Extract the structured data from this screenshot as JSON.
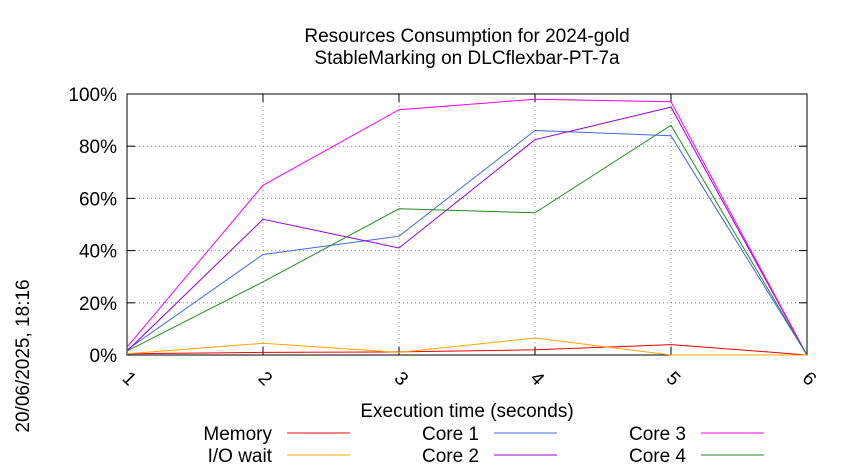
{
  "chart_data": {
    "type": "line",
    "title": "Resources Consumption for 2024-gold",
    "subtitle": "StableMarking on DLCflexbar-PT-7a",
    "xlabel": "Execution time (seconds)",
    "ylabel": "",
    "side_label": "20/06/2025, 18:16",
    "x": [
      1,
      2,
      3,
      4,
      5,
      6
    ],
    "x_tick_labels": [
      "1",
      "2",
      "3",
      "4",
      "5",
      "6"
    ],
    "xlim": [
      1,
      6
    ],
    "ylim": [
      0,
      100
    ],
    "y_ticks": [
      0,
      20,
      40,
      60,
      80,
      100
    ],
    "y_tick_labels": [
      "0%",
      "20%",
      "40%",
      "60%",
      "80%",
      "100%"
    ],
    "grid": true,
    "legend_position": "bottom",
    "series": [
      {
        "name": "Memory",
        "color": "#ff0000",
        "values": [
          0.5,
          1,
          1.2,
          2,
          4,
          0
        ]
      },
      {
        "name": "I/O wait",
        "color": "#ffa500",
        "values": [
          0.5,
          4.5,
          1,
          6.5,
          0,
          0
        ]
      },
      {
        "name": "Core 1",
        "color": "#4169e1",
        "values": [
          2,
          38.5,
          45.5,
          86,
          84,
          0
        ]
      },
      {
        "name": "Core 2",
        "color": "#9400d3",
        "values": [
          1.5,
          52,
          41,
          82.5,
          95,
          0
        ]
      },
      {
        "name": "Core 3",
        "color": "#ff00ff",
        "values": [
          3,
          65,
          94,
          98,
          97,
          0
        ]
      },
      {
        "name": "Core 4",
        "color": "#228b22",
        "values": [
          1.5,
          28,
          56,
          54.5,
          88,
          0
        ]
      }
    ]
  }
}
